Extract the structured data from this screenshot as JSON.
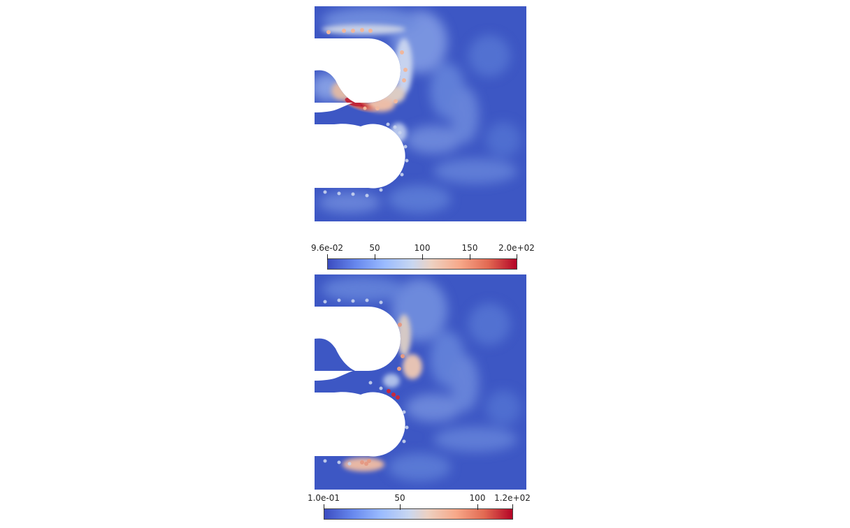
{
  "colors": {
    "background": "#ffffff",
    "low": "#3b4cc0",
    "mid": "#dddddd",
    "high": "#b40426"
  },
  "plots": [
    {
      "colorbar": {
        "labels": [
          "9.6e-02",
          "50",
          "100",
          "150",
          "2.0e+02"
        ],
        "values": [
          0.096,
          50,
          100,
          150,
          200
        ]
      }
    },
    {
      "colorbar": {
        "labels": [
          "1.0e-01",
          "50",
          "100",
          "1.2e+02"
        ],
        "values": [
          0.1,
          50,
          100,
          120
        ]
      }
    }
  ]
}
